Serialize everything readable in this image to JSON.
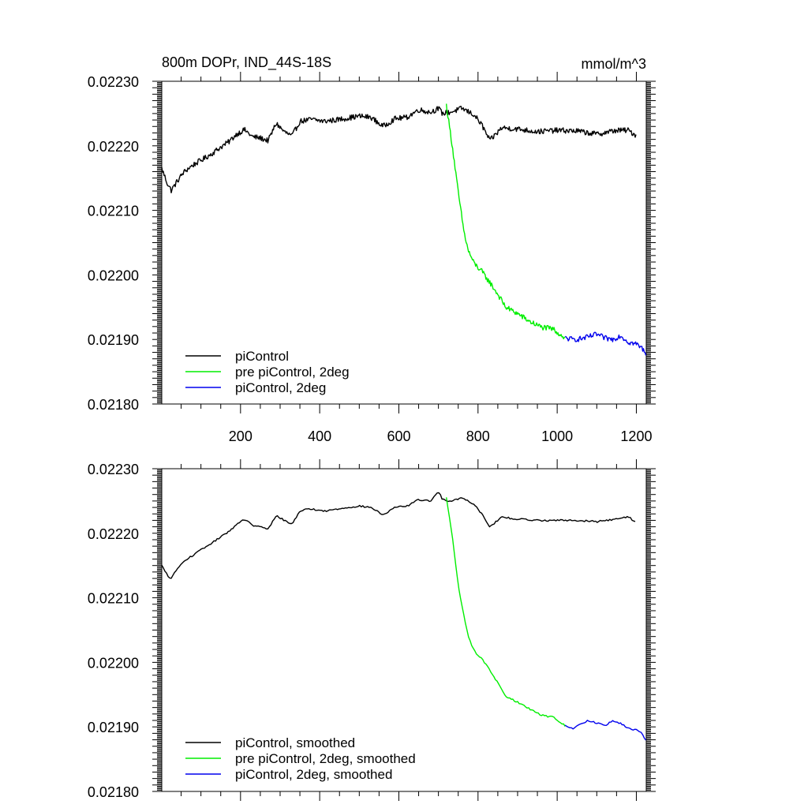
{
  "chart_data": [
    {
      "type": "line",
      "title": "800m DOPr, IND_44S-18S",
      "units": "mmol/m^3",
      "xlim": [
        1,
        1225
      ],
      "ylim": [
        0.0218,
        0.0223
      ],
      "x_ticks": [
        200,
        400,
        600,
        800,
        1000,
        1200
      ],
      "x_tick_labels": [
        "200",
        "400",
        "600",
        "800",
        "1000",
        "1200"
      ],
      "y_ticks": [
        0.0218,
        0.0219,
        0.022,
        0.0221,
        0.0222,
        0.0223
      ],
      "y_tick_labels": [
        "0.02180",
        "0.02190",
        "0.02200",
        "0.02210",
        "0.02220",
        "0.02230"
      ],
      "grid": false,
      "legend_position": "bottom-left",
      "series": [
        {
          "name": "piControl",
          "color": "#000000",
          "x": [
            1,
            15,
            25,
            40,
            55,
            70,
            90,
            110,
            130,
            150,
            170,
            190,
            210,
            230,
            250,
            270,
            290,
            310,
            330,
            350,
            380,
            410,
            440,
            470,
            500,
            530,
            560,
            590,
            620,
            650,
            680,
            700,
            710,
            730,
            760,
            790,
            810,
            830,
            860,
            900,
            950,
            1000,
            1050,
            1100,
            1150,
            1180,
            1200
          ],
          "y": [
            0.022165,
            0.022142,
            0.022131,
            0.022145,
            0.022158,
            0.022166,
            0.022174,
            0.022181,
            0.022189,
            0.022198,
            0.022206,
            0.022218,
            0.022225,
            0.022214,
            0.022212,
            0.022208,
            0.022235,
            0.022222,
            0.022215,
            0.022238,
            0.022241,
            0.022238,
            0.02224,
            0.022243,
            0.022246,
            0.022244,
            0.02223,
            0.022242,
            0.022244,
            0.022256,
            0.022252,
            0.022258,
            0.02225,
            0.022252,
            0.022258,
            0.022248,
            0.022232,
            0.022208,
            0.022228,
            0.022226,
            0.022222,
            0.022224,
            0.022223,
            0.022218,
            0.022224,
            0.022224,
            0.022216
          ]
        },
        {
          "name": "pre piControl, 2deg",
          "color": "#00ee00",
          "x": [
            720,
            735,
            750,
            765,
            775,
            790,
            810,
            830,
            850,
            870,
            900,
            930,
            960,
            990,
            1020
          ],
          "y": [
            0.022263,
            0.0222,
            0.022128,
            0.022065,
            0.022038,
            0.022018,
            0.022005,
            0.021988,
            0.02197,
            0.02195,
            0.02194,
            0.021928,
            0.021919,
            0.021916,
            0.021902
          ]
        },
        {
          "name": "piControl, 2deg",
          "color": "#0000ee",
          "x": [
            1020,
            1040,
            1060,
            1080,
            1100,
            1120,
            1140,
            1160,
            1180,
            1200,
            1215,
            1225
          ],
          "y": [
            0.021902,
            0.0219,
            0.021901,
            0.021904,
            0.021908,
            0.021902,
            0.0219,
            0.021906,
            0.021896,
            0.021893,
            0.021886,
            0.021878
          ]
        }
      ]
    },
    {
      "type": "line",
      "xlim": [
        1,
        1225
      ],
      "ylim": [
        0.0218,
        0.0223
      ],
      "y_ticks": [
        0.0218,
        0.0219,
        0.022,
        0.0221,
        0.0222,
        0.0223
      ],
      "y_tick_labels": [
        "0.02180",
        "0.02190",
        "0.02200",
        "0.02210",
        "0.02220",
        "0.02230"
      ],
      "grid": false,
      "legend_position": "bottom-left",
      "series": [
        {
          "name": "piControl, smoothed",
          "color": "#000000",
          "x": [
            1,
            15,
            25,
            40,
            55,
            70,
            90,
            110,
            130,
            150,
            170,
            190,
            210,
            230,
            250,
            270,
            290,
            310,
            330,
            350,
            380,
            410,
            440,
            470,
            500,
            530,
            560,
            590,
            620,
            650,
            680,
            700,
            710,
            730,
            760,
            790,
            810,
            830,
            860,
            900,
            950,
            1000,
            1050,
            1100,
            1150,
            1180,
            1200
          ],
          "y": [
            0.02215,
            0.022135,
            0.02213,
            0.022145,
            0.022155,
            0.022162,
            0.02217,
            0.022178,
            0.022186,
            0.022194,
            0.022203,
            0.022213,
            0.022222,
            0.022212,
            0.02221,
            0.022206,
            0.022228,
            0.02222,
            0.022214,
            0.022235,
            0.022238,
            0.022234,
            0.022237,
            0.02224,
            0.022242,
            0.02224,
            0.022228,
            0.02224,
            0.022242,
            0.022252,
            0.02225,
            0.022265,
            0.022252,
            0.02225,
            0.022255,
            0.022245,
            0.02223,
            0.02221,
            0.022225,
            0.022222,
            0.02222,
            0.02222,
            0.02222,
            0.022218,
            0.022222,
            0.022226,
            0.022216
          ]
        },
        {
          "name": "pre piControl, 2deg, smoothed",
          "color": "#00ee00",
          "x": [
            720,
            735,
            750,
            765,
            775,
            790,
            810,
            830,
            850,
            870,
            900,
            930,
            960,
            990,
            1020
          ],
          "y": [
            0.022255,
            0.022195,
            0.02212,
            0.02207,
            0.02204,
            0.022018,
            0.022005,
            0.021988,
            0.021968,
            0.021948,
            0.021938,
            0.021928,
            0.021918,
            0.021915,
            0.021902
          ]
        },
        {
          "name": "piControl, 2deg, smoothed",
          "color": "#0000ee",
          "x": [
            1020,
            1040,
            1060,
            1080,
            1100,
            1120,
            1140,
            1160,
            1180,
            1200,
            1215,
            1225
          ],
          "y": [
            0.021902,
            0.021898,
            0.021905,
            0.02191,
            0.021906,
            0.021902,
            0.02191,
            0.021905,
            0.021898,
            0.021895,
            0.02189,
            0.021878
          ]
        }
      ]
    }
  ]
}
